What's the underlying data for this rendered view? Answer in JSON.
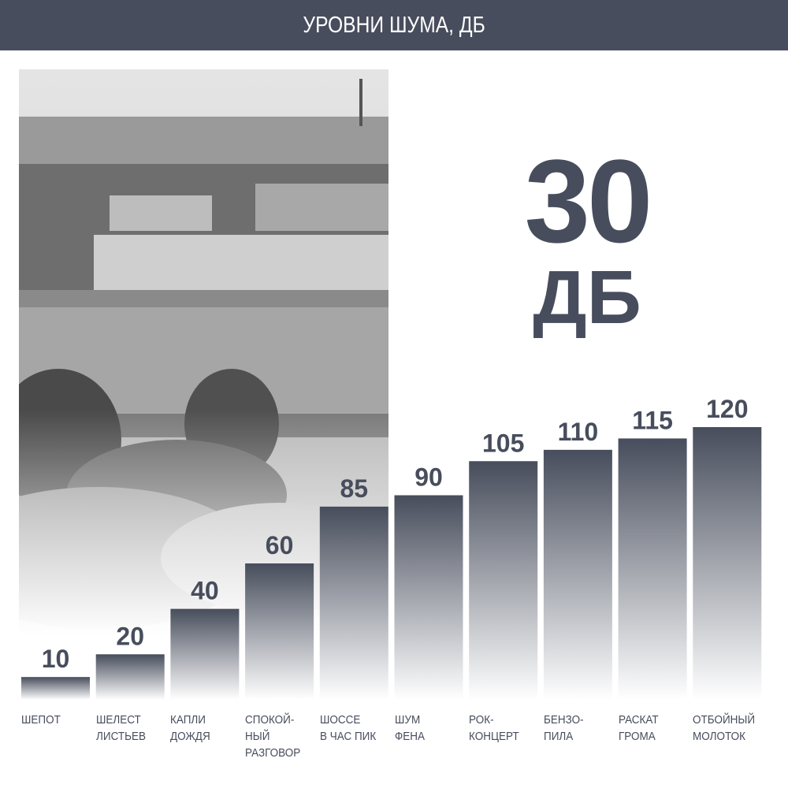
{
  "header": {
    "title": "УРОВНИ ШУМА, ДБ"
  },
  "highlight": {
    "value": "30",
    "unit": "ДБ"
  },
  "colors": {
    "primary": "#474d5c",
    "background": "#ffffff"
  },
  "chart_data": {
    "type": "bar",
    "title": "УРОВНИ ШУМА, ДБ",
    "categories": [
      "ШЕПОТ",
      "ШЕЛЕСТ\nЛИСТЬЕВ",
      "КАПЛИ\nДОЖДЯ",
      "СПОКОЙ-\nНЫЙ\nРАЗГОВОР",
      "ШОССЕ\nВ ЧАС ПИК",
      "ШУМ\nФЕНА",
      "РОК-\nКОНЦЕРТ",
      "БЕНЗО-\nПИЛА",
      "РАСКАТ\nГРОМА",
      "ОТБОЙНЫЙ\nМОЛОТОК"
    ],
    "values": [
      10,
      20,
      40,
      60,
      85,
      90,
      105,
      110,
      115,
      120
    ],
    "data_labels": [
      "10",
      "20",
      "40",
      "60",
      "85",
      "90",
      "105",
      "110",
      "115",
      "120"
    ],
    "ylim": [
      0,
      120
    ],
    "grid": false,
    "bar_fill": "gradient #474d5c to white"
  }
}
